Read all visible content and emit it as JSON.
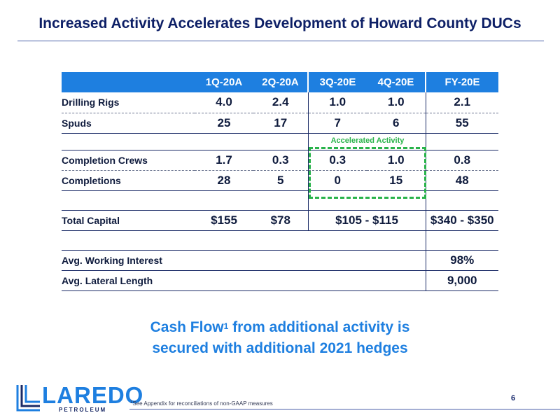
{
  "title": "Increased Activity Accelerates Development of Howard County DUCs",
  "table": {
    "headers": [
      "1Q-20A",
      "2Q-20A",
      "3Q-20E",
      "4Q-20E",
      "FY-20E"
    ],
    "rows": {
      "drilling_rigs": {
        "label": "Drilling Rigs",
        "values": [
          "4.0",
          "2.4",
          "1.0",
          "1.0",
          "2.1"
        ]
      },
      "spuds": {
        "label": "Spuds",
        "values": [
          "25",
          "17",
          "7",
          "6",
          "55"
        ]
      },
      "completion_crews": {
        "label": "Completion Crews",
        "values": [
          "1.7",
          "0.3",
          "0.3",
          "1.0",
          "0.8"
        ]
      },
      "completions": {
        "label": "Completions",
        "values": [
          "28",
          "5",
          "0",
          "15",
          "48"
        ]
      },
      "total_capital": {
        "label": "Total Capital",
        "values": [
          "$155",
          "$78",
          "$105 - $115",
          "$340 - $350"
        ]
      },
      "avg_working_interest": {
        "label": "Avg. Working Interest",
        "value": "98%"
      },
      "avg_lateral_length": {
        "label": "Avg. Lateral Length",
        "value": "9,000"
      }
    },
    "accelerated_label": "Accelerated Activity"
  },
  "callout": {
    "line1_a": "Cash Flow",
    "line1_sup": "1",
    "line1_b": " from additional activity is",
    "line2": "secured with additional 2021 hedges"
  },
  "footer": {
    "footnote_sup": "1",
    "footnote": "See Appendix for reconciliations of non-GAAP measures",
    "page_number": "6",
    "logo_word": "LAREDO",
    "logo_sub": "PETROLEUM"
  },
  "colors": {
    "title": "#0d1f66",
    "header_bg": "#1e7fe0",
    "accent_green": "#29b34a",
    "callout": "#1e7fe0"
  }
}
